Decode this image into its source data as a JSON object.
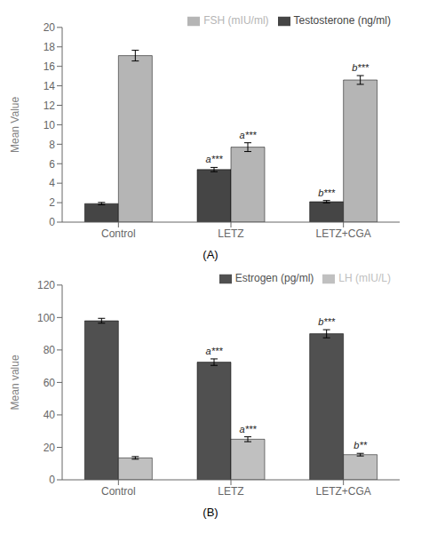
{
  "chart_data": [
    {
      "type": "bar",
      "title": "(A)",
      "categories": [
        "Control",
        "LETZ",
        "LETZ+CGA"
      ],
      "series": [
        {
          "name": "Testosterone (ng/ml)",
          "color": "#454545",
          "values": [
            1.9,
            5.4,
            2.1
          ],
          "errors": [
            0.12,
            0.22,
            0.12
          ],
          "annotations": [
            null,
            "a***",
            "b***"
          ]
        },
        {
          "name": "FSH (mIU/ml)",
          "color": "#b5b5b5",
          "values": [
            17.1,
            7.7,
            14.6
          ],
          "errors": [
            0.55,
            0.45,
            0.45
          ],
          "annotations": [
            null,
            "a***",
            "b***"
          ]
        }
      ],
      "ylabel": "Mean Value",
      "ylim": [
        0,
        20
      ],
      "yticks": [
        0,
        2,
        4,
        6,
        8,
        10,
        12,
        14,
        16,
        18,
        20
      ],
      "grid": false,
      "legend": "upper right"
    },
    {
      "type": "bar",
      "title": "(B)",
      "categories": [
        "Control",
        "LETZ",
        "LETZ+CGA"
      ],
      "series": [
        {
          "name": "Estrogen (pg/ml)",
          "color": "#505050",
          "values": [
            98.0,
            72.5,
            90.0
          ],
          "errors": [
            1.5,
            2.0,
            2.5
          ],
          "annotations": [
            null,
            "a***",
            "b***"
          ]
        },
        {
          "name": "LH (mIU/L)",
          "color": "#c0c0c0",
          "values": [
            13.5,
            25.0,
            15.5
          ],
          "errors": [
            0.8,
            1.5,
            0.8
          ],
          "annotations": [
            null,
            "a***",
            "b**"
          ]
        }
      ],
      "ylabel": "Mean value",
      "ylim": [
        0,
        120
      ],
      "yticks": [
        0,
        20,
        40,
        60,
        80,
        100,
        120
      ],
      "grid": false,
      "legend": "upper right"
    }
  ]
}
